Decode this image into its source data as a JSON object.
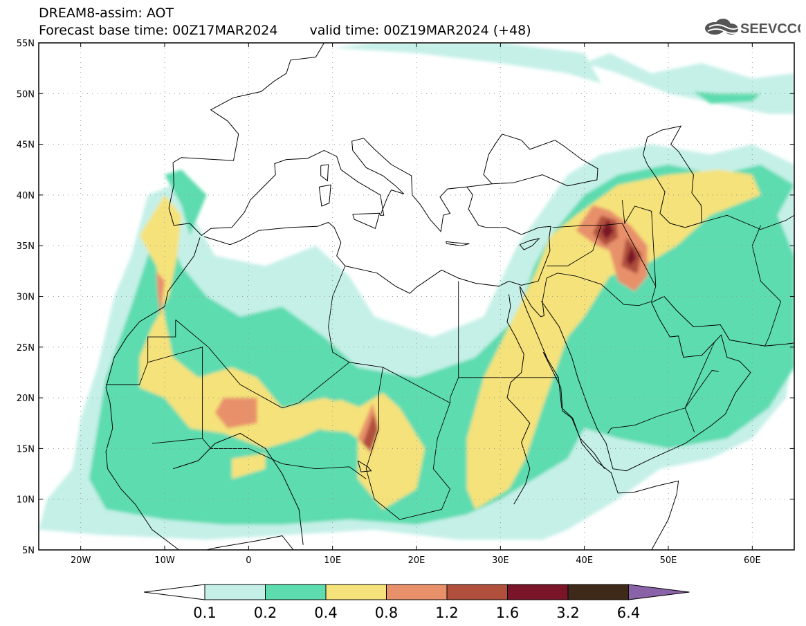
{
  "title": {
    "line1": "DREAM8-assim: AOT",
    "base": "Forecast base time: 00Z17MAR2024",
    "valid": "valid time: 00Z19MAR2024 (+48)"
  },
  "logo": {
    "text": "SEEVCCC",
    "icon": "cloud-icon"
  },
  "map": {
    "lon_range": [
      -25,
      65
    ],
    "lat_range": [
      5,
      55
    ],
    "lat_labels": [
      "55N",
      "50N",
      "45N",
      "40N",
      "35N",
      "30N",
      "25N",
      "20N",
      "15N",
      "10N",
      "5N"
    ],
    "lat_values": [
      55,
      50,
      45,
      40,
      35,
      30,
      25,
      20,
      15,
      10,
      5
    ],
    "lon_labels": [
      "20W",
      "10W",
      "0",
      "10E",
      "20E",
      "30E",
      "40E",
      "50E",
      "60E"
    ],
    "lon_values": [
      -20,
      -10,
      0,
      10,
      20,
      30,
      40,
      50,
      60
    ],
    "gridlines": "dotted",
    "field": "AOT"
  },
  "colorbar": {
    "labels": [
      "0.1",
      "0.2",
      "0.4",
      "0.8",
      "1.2",
      "1.6",
      "3.2",
      "6.4"
    ],
    "colors": [
      "#c5f0e8",
      "#5ddcb0",
      "#f5e27a",
      "#e8906a",
      "#b0503c",
      "#7a1428",
      "#3f2a1a"
    ],
    "under_color": "#ffffff",
    "over_color": "#8a62a8"
  }
}
